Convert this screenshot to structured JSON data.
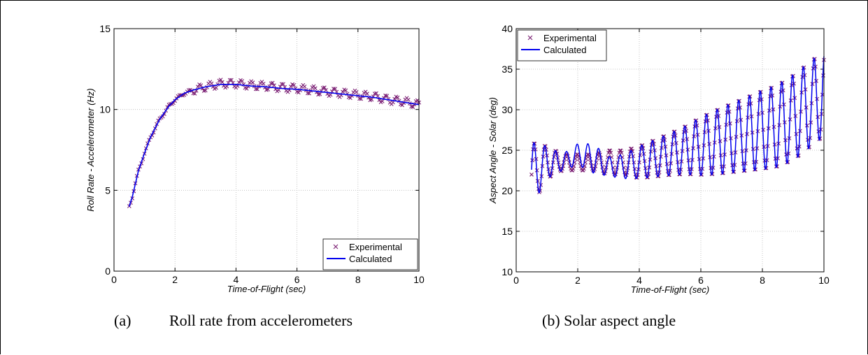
{
  "chart_data": [
    {
      "type": "line",
      "xlabel": "Time-of-Flight (sec)",
      "ylabel": "Roll Rate - Accelerometer (Hz)",
      "xlim": [
        0,
        10
      ],
      "ylim": [
        0,
        15
      ],
      "xticks": [
        "0",
        "2",
        "4",
        "6",
        "8",
        "10"
      ],
      "yticks": [
        "0",
        "5",
        "10",
        "15"
      ],
      "grid": true,
      "legend_position": "bottom-right",
      "series": [
        {
          "name": "Experimental",
          "style": "marker-x",
          "color": "#7b1f74",
          "x": [
            0.5,
            0.6,
            0.7,
            0.8,
            1.0,
            1.2,
            1.5,
            1.8,
            2.0,
            2.3,
            2.6,
            3.0,
            3.5,
            4.0,
            4.5,
            5.0,
            5.5,
            6.0,
            6.5,
            7.0,
            7.5,
            8.0,
            8.5,
            9.0,
            9.5,
            10.0
          ],
          "y": [
            4.0,
            4.6,
            5.4,
            6.2,
            7.3,
            8.3,
            9.4,
            10.2,
            10.6,
            11.0,
            11.2,
            11.4,
            11.6,
            11.6,
            11.5,
            11.45,
            11.35,
            11.3,
            11.2,
            11.1,
            11.0,
            10.9,
            10.8,
            10.6,
            10.5,
            10.3
          ],
          "oscillation_amplitude": 0.25
        },
        {
          "name": "Calculated",
          "style": "line",
          "color": "#0000ee",
          "x": [
            0.5,
            0.6,
            0.7,
            0.8,
            1.0,
            1.2,
            1.5,
            1.8,
            2.0,
            2.3,
            2.6,
            3.0,
            3.5,
            4.0,
            4.5,
            5.0,
            5.5,
            6.0,
            6.5,
            7.0,
            7.5,
            8.0,
            8.5,
            9.0,
            9.5,
            10.0
          ],
          "y": [
            4.0,
            4.6,
            5.4,
            6.2,
            7.3,
            8.3,
            9.4,
            10.2,
            10.6,
            11.0,
            11.2,
            11.4,
            11.55,
            11.55,
            11.45,
            11.4,
            11.3,
            11.25,
            11.15,
            11.05,
            10.95,
            10.85,
            10.75,
            10.6,
            10.45,
            10.3
          ]
        }
      ]
    },
    {
      "type": "line",
      "xlabel": "Time-of-Flight (sec)",
      "ylabel": "Aspect Angle - Solar (deg)",
      "xlim": [
        0,
        10
      ],
      "ylim": [
        10,
        40
      ],
      "xticks": [
        "0",
        "2",
        "4",
        "6",
        "8",
        "10"
      ],
      "yticks": [
        "10",
        "15",
        "20",
        "25",
        "30",
        "35",
        "40"
      ],
      "grid": true,
      "legend_position": "top-left",
      "series": [
        {
          "name": "Experimental",
          "style": "marker-x",
          "color": "#7b1f74",
          "x": [
            0.5,
            1.0,
            1.5,
            2.0,
            2.5,
            3.0,
            3.5,
            4.0,
            4.5,
            5.0,
            5.5,
            6.0,
            6.5,
            7.0,
            7.5,
            8.0,
            8.5,
            9.0,
            9.5,
            10.0
          ],
          "y_center": [
            22.0,
            23.5,
            23.5,
            23.5,
            23.5,
            23.5,
            23.5,
            23.5,
            24.0,
            24.5,
            25.0,
            25.5,
            26.0,
            26.5,
            27.0,
            27.5,
            28.0,
            29.0,
            30.5,
            32.0
          ],
          "amplitude": [
            4.0,
            2.0,
            1.0,
            1.0,
            1.0,
            1.5,
            1.5,
            2.0,
            2.3,
            2.6,
            3.0,
            3.6,
            4.0,
            4.3,
            4.6,
            4.9,
            5.1,
            5.3,
            5.3,
            5.3
          ]
        },
        {
          "name": "Calculated",
          "style": "line",
          "color": "#0000ee",
          "x": [
            0.5,
            1.0,
            1.5,
            2.0,
            2.5,
            3.0,
            3.5,
            4.0,
            4.5,
            5.0,
            5.5,
            6.0,
            6.5,
            7.0,
            7.5,
            8.0,
            8.5,
            9.0,
            9.5,
            10.0
          ],
          "y_center": [
            22.0,
            23.5,
            23.5,
            24.5,
            24.0,
            23.0,
            23.0,
            23.5,
            24.0,
            24.5,
            25.0,
            25.5,
            26.0,
            26.5,
            27.0,
            27.5,
            28.0,
            29.0,
            30.5,
            32.0
          ],
          "amplitude": [
            4.0,
            2.0,
            1.0,
            1.3,
            1.8,
            1.2,
            1.5,
            2.0,
            2.3,
            2.6,
            3.0,
            3.6,
            4.0,
            4.3,
            4.6,
            4.9,
            5.1,
            5.3,
            5.3,
            5.3
          ],
          "oscillation_period_sec": 0.35
        }
      ]
    }
  ],
  "captions": {
    "a_label": "(a)",
    "a_text": "Roll rate from accelerometers",
    "b_text": "(b) Solar aspect angle"
  }
}
